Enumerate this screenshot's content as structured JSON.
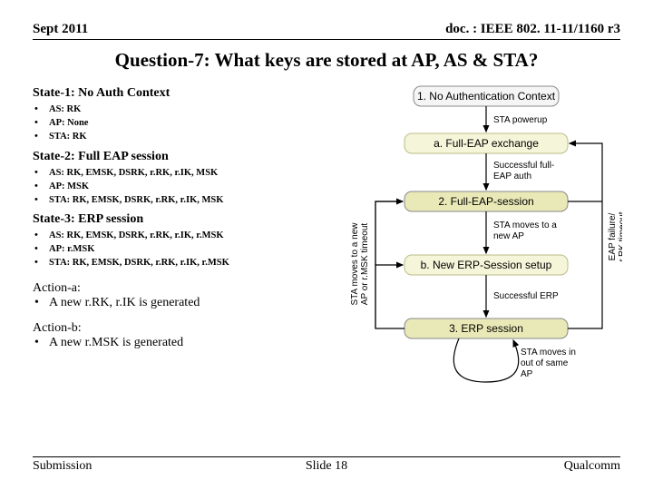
{
  "header": {
    "left": "Sept 2011",
    "right": "doc. : IEEE 802. 11-11/1160 r3"
  },
  "title": "Question-7: What keys are stored at AP, AS & STA?",
  "states": [
    {
      "heading": "State-1: No Auth Context",
      "items": [
        "AS: RK",
        "AP: None",
        "STA: RK"
      ]
    },
    {
      "heading": "State-2: Full EAP session",
      "items": [
        "AS: RK, EMSK, DSRK, r.RK, r.IK, MSK",
        "AP: MSK",
        "STA: RK, EMSK, DSRK, r.RK, r.IK, MSK"
      ]
    },
    {
      "heading": "State-3: ERP session",
      "items": [
        "AS: RK, EMSK, DSRK, r.RK, r.IK, r.MSK",
        "AP: r.MSK",
        "STA: RK, EMSK, DSRK, r.RK, r.IK, r.MSK"
      ]
    }
  ],
  "actions": [
    {
      "heading": "Action-a:",
      "item": "A new r.RK, r.IK is generated"
    },
    {
      "heading": "Action-b:",
      "item": "A new r.MSK is generated"
    }
  ],
  "footer": {
    "left": "Submission",
    "center": "Slide 18",
    "right": "Qualcomm"
  },
  "diagram": {
    "colors": {
      "state_fill": "#e9e9b7",
      "state_stroke": "#888888",
      "action_fill": "#f5f5d9",
      "action_stroke": "#bdbd88",
      "arrow": "#000000",
      "text": "#000000",
      "caption_fill": "#f5f5f5",
      "caption_stroke": "#8a8a8a"
    },
    "caption1": "1. No Authentication Context",
    "caption2": "2. Full-EAP-session",
    "caption3": "3. ERP session",
    "actionA": "a. Full-EAP exchange",
    "actionB": "b. New ERP-Session setup",
    "label_powerup": "STA powerup",
    "label_full_eap": "Successful full-EAP auth",
    "label_move_new": "STA moves to a new AP",
    "label_erp_ok": "Successful ERP",
    "label_move_same": "STA moves in out of same AP",
    "label_left_vert": "STA moves to a new AP or r.MSK timeout",
    "label_right_vert": "EAP failure/ r.RK timeout",
    "font_size_box": 12,
    "font_size_small": 10
  }
}
